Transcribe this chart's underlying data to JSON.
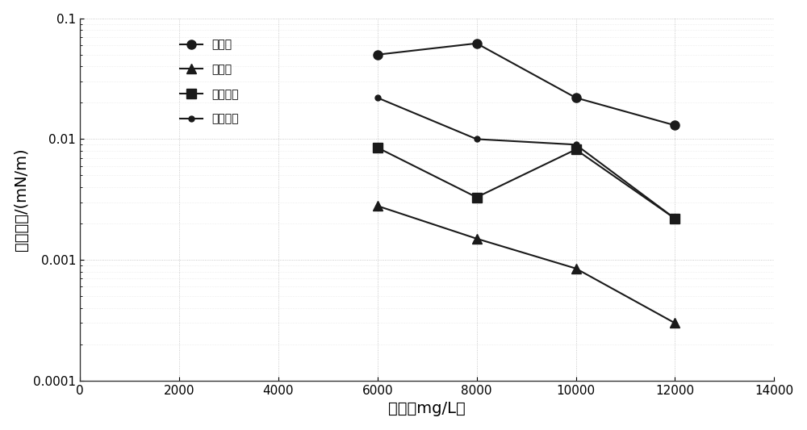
{
  "x": [
    6000,
    8000,
    10000,
    12000
  ],
  "series": [
    {
      "label": "三乙胺",
      "y": [
        0.05,
        0.062,
        0.022,
        0.013
      ],
      "marker": "o",
      "color": "#1a1a1a",
      "linestyle": "-"
    },
    {
      "label": "乙醇胺",
      "y": [
        0.0028,
        0.0015,
        0.00085,
        0.0003
      ],
      "marker": "^",
      "color": "#1a1a1a",
      "linestyle": "-"
    },
    {
      "label": "二乙醇胺",
      "y": [
        0.0085,
        0.0033,
        0.0082,
        0.0022
      ],
      "marker": "s",
      "color": "#1a1a1a",
      "linestyle": "-"
    },
    {
      "label": "三乙醇胺",
      "y": [
        0.022,
        0.01,
        0.009,
        0.0022
      ],
      "marker": "o",
      "color": "#1a1a1a",
      "linestyle": "-",
      "markersize": 5
    }
  ],
  "xlabel": "浓度（mg/L）",
  "ylabel": "界面张力/(mN/m)",
  "xlim": [
    0,
    14000
  ],
  "ylim": [
    0.0001,
    0.1
  ],
  "xticks": [
    0,
    2000,
    4000,
    6000,
    8000,
    10000,
    12000,
    14000
  ],
  "yticks": [
    0.0001,
    0.001,
    0.01,
    0.1
  ],
  "ytick_labels": [
    "0.0001",
    "0.001",
    "0.01",
    "0.1"
  ],
  "background_color": "#ffffff",
  "legend_fontsize": 13,
  "axis_fontsize": 14
}
